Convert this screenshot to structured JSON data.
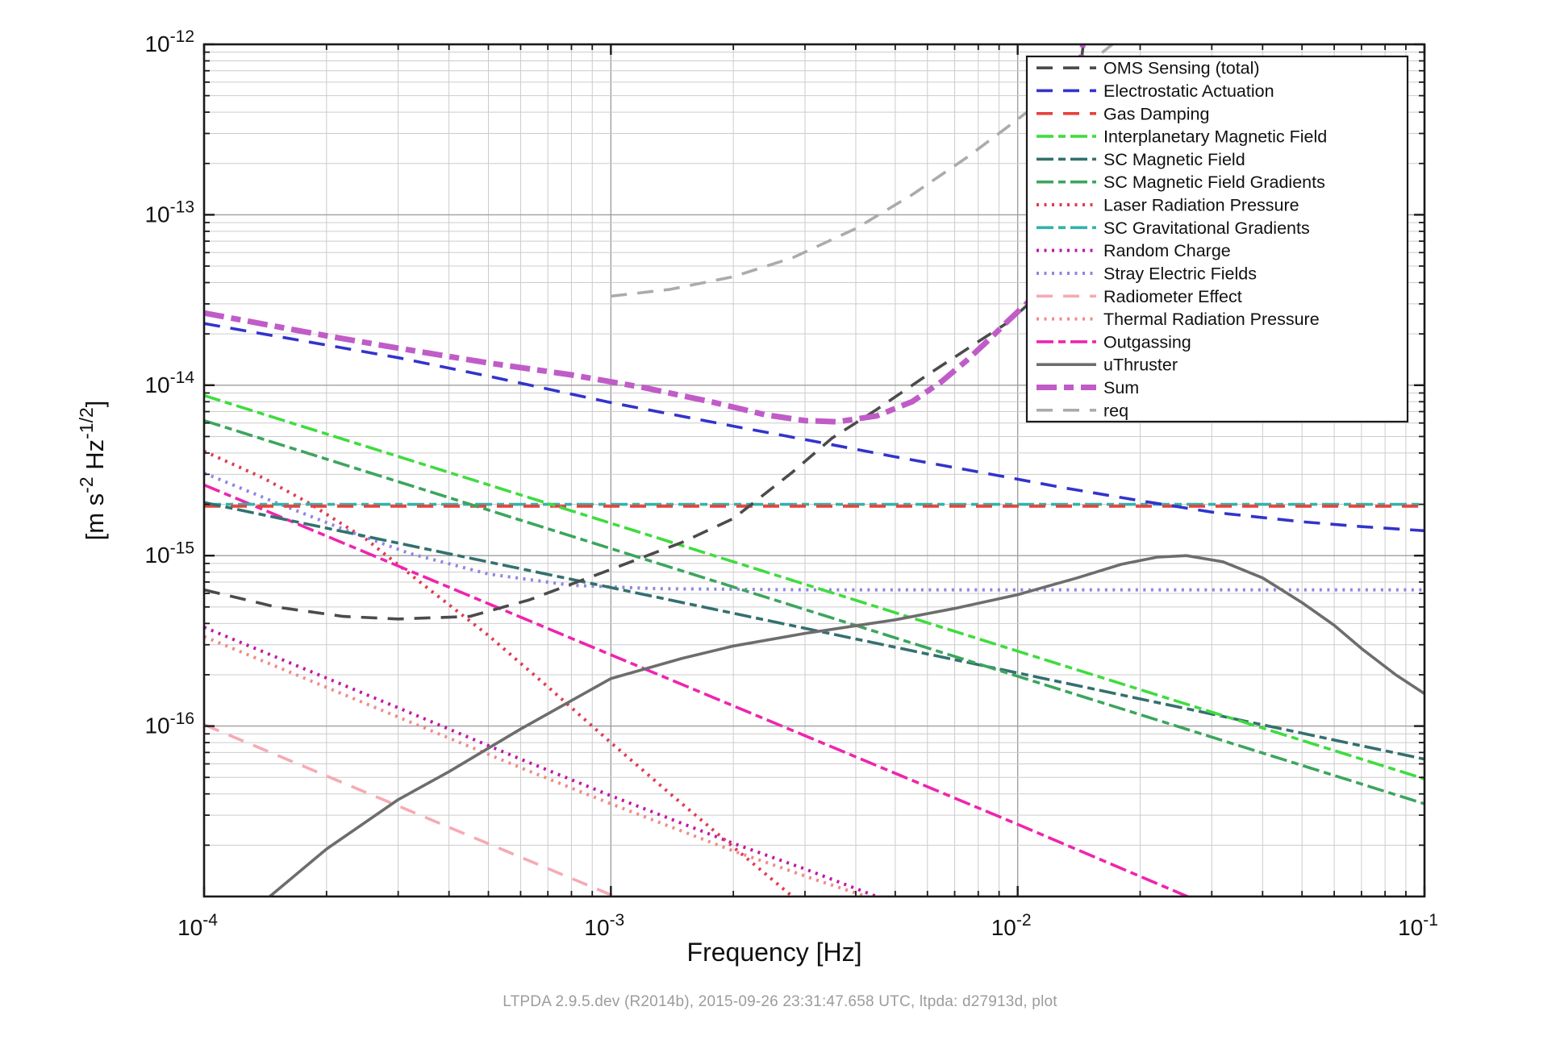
{
  "figure": {
    "footer": "LTPDA 2.9.5.dev (R2014b), 2015-09-26 23:31:47.658 UTC, ltpda: d27913d, plot",
    "background": "#ffffff",
    "frame_color": "#1a1a1a",
    "grid_major_color": "#9f9f9f",
    "grid_minor_color": "#cccccc"
  },
  "chart_data": {
    "type": "line",
    "title": "",
    "xlabel": "Frequency  [Hz]",
    "ylabel": "[m s^-2 Hz^-1/2]",
    "ylabel_parts": [
      {
        "t": "[m s",
        "sup": false
      },
      {
        "t": "-2",
        "sup": true
      },
      {
        "t": " Hz",
        "sup": false
      },
      {
        "t": "-1/2",
        "sup": true
      },
      {
        "t": "]",
        "sup": false
      }
    ],
    "x_scale": "log",
    "y_scale": "log",
    "xlim": [
      0.0001,
      0.1
    ],
    "ylim": [
      1.03e-17,
      1e-12
    ],
    "grid": true,
    "legend_position": "upper right",
    "x_ticks": [
      {
        "value": 0.0001,
        "base": "10",
        "exp": "-4"
      },
      {
        "value": 0.001,
        "base": "10",
        "exp": "-3"
      },
      {
        "value": 0.01,
        "base": "10",
        "exp": "-2"
      },
      {
        "value": 0.1,
        "base": "10",
        "exp": "-1"
      }
    ],
    "y_ticks": [
      {
        "value": 1e-12,
        "base": "10",
        "exp": "-12"
      },
      {
        "value": 1e-13,
        "base": "10",
        "exp": "-13"
      },
      {
        "value": 1e-14,
        "base": "10",
        "exp": "-14"
      },
      {
        "value": 1e-15,
        "base": "10",
        "exp": "-15"
      },
      {
        "value": 1e-16,
        "base": "10",
        "exp": "-16"
      }
    ],
    "draw_order": [
      "radiometer",
      "thermal",
      "random_charge",
      "laser",
      "stray",
      "outgassing",
      "sc_grav",
      "gas_damping",
      "sc_mag_field",
      "sc_mag_gradients",
      "interplanetary",
      "uthruster",
      "oms",
      "electrostatic",
      "sum",
      "req"
    ],
    "series": [
      {
        "id": "oms",
        "name": "OMS Sensing (total)",
        "color": "#4b4b4b",
        "style": "dash",
        "width": 3.6,
        "points": [
          [
            0.0001,
            6.3e-16
          ],
          [
            0.00015,
            5e-16
          ],
          [
            0.00022,
            4.4e-16
          ],
          [
            0.0003,
            4.25e-16
          ],
          [
            0.00045,
            4.4e-16
          ],
          [
            0.00063,
            5.5e-16
          ],
          [
            0.001,
            8.3e-16
          ],
          [
            0.0015,
            1.2e-15
          ],
          [
            0.002,
            1.65e-15
          ],
          [
            0.0028,
            3.1e-15
          ],
          [
            0.0035,
            4.9e-15
          ],
          [
            0.0045,
            7.2e-15
          ],
          [
            0.006,
            1.15e-14
          ],
          [
            0.008,
            1.8e-14
          ],
          [
            0.0095,
            2.35e-14
          ],
          [
            0.0108,
            3.1e-14
          ],
          [
            0.012,
            5.8e-14
          ],
          [
            0.013,
            1.55e-13
          ],
          [
            0.0139,
            4.3e-13
          ],
          [
            0.0145,
            1e-12
          ],
          [
            0.0147,
            1.35e-12
          ]
        ]
      },
      {
        "id": "electrostatic",
        "name": "Electrostatic Actuation",
        "color": "#3333cc",
        "style": "dash",
        "width": 3.6,
        "points": [
          [
            0.0001,
            2.3e-14
          ],
          [
            0.0002,
            1.72e-14
          ],
          [
            0.0003,
            1.45e-14
          ],
          [
            0.0005,
            1.13e-14
          ],
          [
            0.001,
            7.9e-15
          ],
          [
            0.002,
            5.75e-15
          ],
          [
            0.003,
            4.8e-15
          ],
          [
            0.005,
            3.8e-15
          ],
          [
            0.008,
            3.1e-15
          ],
          [
            0.013,
            2.5e-15
          ],
          [
            0.02,
            2.1e-15
          ],
          [
            0.03,
            1.8e-15
          ],
          [
            0.05,
            1.58e-15
          ],
          [
            0.07,
            1.48e-15
          ],
          [
            0.1,
            1.4e-15
          ]
        ]
      },
      {
        "id": "gas_damping",
        "name": "Gas Damping",
        "color": "#e8413c",
        "style": "dash",
        "width": 3.6,
        "points": [
          [
            0.0001,
            1.95e-15
          ],
          [
            0.1,
            1.95e-15
          ]
        ]
      },
      {
        "id": "interplanetary",
        "name": "Interplanetary Magnetic Field",
        "color": "#3fdc3f",
        "style": "dashdot",
        "width": 3.6,
        "points": [
          [
            0.0001,
            8.7e-15
          ],
          [
            0.001,
            1.55e-15
          ],
          [
            0.01,
            2.75e-16
          ],
          [
            0.1,
            4.9e-17
          ]
        ]
      },
      {
        "id": "sc_mag_field",
        "name": "SC Magnetic Field",
        "color": "#34706f",
        "style": "dashdot",
        "width": 3.6,
        "points": [
          [
            0.0001,
            2.05e-15
          ],
          [
            0.001,
            6.5e-16
          ],
          [
            0.01,
            2.05e-16
          ],
          [
            0.1,
            6.4e-17
          ]
        ]
      },
      {
        "id": "sc_mag_gradients",
        "name": "SC Magnetic Field Gradients",
        "color": "#3ca55e",
        "style": "dashdot",
        "width": 3.6,
        "points": [
          [
            0.0001,
            6.2e-15
          ],
          [
            0.001,
            1.1e-15
          ],
          [
            0.01,
            1.96e-16
          ],
          [
            0.1,
            3.5e-17
          ]
        ]
      },
      {
        "id": "laser",
        "name": "Laser Radiation Pressure",
        "color": "#e13b52",
        "style": "dot",
        "width": 4,
        "points": [
          [
            0.0001,
            4.1e-15
          ],
          [
            0.00014,
            2.85e-15
          ],
          [
            0.00018,
            2.05e-15
          ],
          [
            0.00025,
            1.25e-15
          ],
          [
            0.00035,
            6.6e-16
          ],
          [
            0.0005,
            3.4e-16
          ],
          [
            0.0007,
            1.7e-16
          ],
          [
            0.001,
            8e-17
          ],
          [
            0.0014,
            4e-17
          ],
          [
            0.002,
            1.95e-17
          ],
          [
            0.0029,
            9.3e-18
          ]
        ]
      },
      {
        "id": "sc_grav",
        "name": "SC Gravitational Gradients",
        "color": "#32b3aa",
        "style": "dashdot",
        "width": 3.6,
        "points": [
          [
            0.0001,
            2e-15
          ],
          [
            0.1,
            2e-15
          ]
        ]
      },
      {
        "id": "random_charge",
        "name": "Random Charge",
        "color": "#c217a7",
        "style": "dot",
        "width": 4,
        "points": [
          [
            0.0001,
            3.8e-16
          ],
          [
            0.0003,
            1.28e-16
          ],
          [
            0.0006,
            6.4e-17
          ],
          [
            0.001,
            3.9e-17
          ],
          [
            0.002,
            2.05e-17
          ],
          [
            0.003,
            1.45e-17
          ],
          [
            0.0045,
            1e-17
          ],
          [
            0.0055,
            8.6e-18
          ]
        ]
      },
      {
        "id": "stray",
        "name": "Stray Electric Fields",
        "color": "#8e86e2",
        "style": "dot",
        "width": 4,
        "points": [
          [
            0.0001,
            3.05e-15
          ],
          [
            0.00015,
            2.05e-15
          ],
          [
            0.00022,
            1.43e-15
          ],
          [
            0.00032,
            1.03e-15
          ],
          [
            0.0005,
            7.8e-16
          ],
          [
            0.0008,
            6.7e-16
          ],
          [
            0.0013,
            6.4e-16
          ],
          [
            0.003,
            6.3e-16
          ],
          [
            0.1,
            6.3e-16
          ]
        ]
      },
      {
        "id": "radiometer",
        "name": "Radiometer Effect",
        "color": "#f5abb4",
        "style": "dash",
        "width": 3.6,
        "points": [
          [
            0.0001,
            1.02e-16
          ],
          [
            0.0002,
            5.1e-17
          ],
          [
            0.0004,
            2.55e-17
          ],
          [
            0.0007,
            1.46e-17
          ],
          [
            0.00115,
            8.9e-18
          ]
        ]
      },
      {
        "id": "thermal",
        "name": "Thermal Radiation Pressure",
        "color": "#ef8b8b",
        "style": "dot",
        "width": 4,
        "points": [
          [
            0.0001,
            3.35e-16
          ],
          [
            0.0003,
            1.13e-16
          ],
          [
            0.0006,
            5.7e-17
          ],
          [
            0.001,
            3.5e-17
          ],
          [
            0.002,
            1.85e-17
          ],
          [
            0.0032,
            1.25e-17
          ],
          [
            0.005,
            8.8e-18
          ]
        ]
      },
      {
        "id": "outgassing",
        "name": "Outgassing",
        "color": "#ee25ad",
        "style": "dashdot",
        "width": 3.6,
        "points": [
          [
            0.0001,
            2.6e-15
          ],
          [
            0.001,
            2.62e-16
          ],
          [
            0.01,
            2.65e-17
          ],
          [
            0.0275,
            9.5e-18
          ]
        ]
      },
      {
        "id": "uthruster",
        "name": "uThruster",
        "color": "#6d6d6d",
        "style": "solid",
        "width": 3.6,
        "points": [
          [
            0.000145,
            1e-17
          ],
          [
            0.0002,
            1.9e-17
          ],
          [
            0.0003,
            3.7e-17
          ],
          [
            0.0004,
            5.4e-17
          ],
          [
            0.0006,
            9.6e-17
          ],
          [
            0.001,
            1.9e-16
          ],
          [
            0.0015,
            2.5e-16
          ],
          [
            0.002,
            2.95e-16
          ],
          [
            0.003,
            3.5e-16
          ],
          [
            0.005,
            4.2e-16
          ],
          [
            0.007,
            4.9e-16
          ],
          [
            0.01,
            5.9e-16
          ],
          [
            0.014,
            7.4e-16
          ],
          [
            0.018,
            8.9e-16
          ],
          [
            0.022,
            9.8e-16
          ],
          [
            0.026,
            1e-15
          ],
          [
            0.032,
            9.2e-16
          ],
          [
            0.04,
            7.4e-16
          ],
          [
            0.05,
            5.3e-16
          ],
          [
            0.06,
            3.9e-16
          ],
          [
            0.07,
            2.85e-16
          ],
          [
            0.085,
            2e-16
          ],
          [
            0.1,
            1.55e-16
          ]
        ]
      },
      {
        "id": "sum",
        "name": "Sum",
        "color": "#c05cc8",
        "style": "sumdash",
        "width": 7,
        "points": [
          [
            0.0001,
            2.65e-14
          ],
          [
            0.0002,
            1.95e-14
          ],
          [
            0.0003,
            1.65e-14
          ],
          [
            0.0005,
            1.35e-14
          ],
          [
            0.0008,
            1.15e-14
          ],
          [
            0.0012,
            9.7e-15
          ],
          [
            0.0018,
            7.9e-15
          ],
          [
            0.0024,
            6.7e-15
          ],
          [
            0.003,
            6.2e-15
          ],
          [
            0.0036,
            6.1e-15
          ],
          [
            0.0045,
            6.6e-15
          ],
          [
            0.0055,
            8e-15
          ],
          [
            0.0065,
            1.05e-14
          ],
          [
            0.0075,
            1.4e-14
          ],
          [
            0.0085,
            1.85e-14
          ],
          [
            0.0095,
            2.4e-14
          ],
          [
            0.0108,
            3.2e-14
          ],
          [
            0.012,
            6.2e-14
          ],
          [
            0.013,
            1.65e-13
          ],
          [
            0.0139,
            4.5e-13
          ],
          [
            0.0145,
            1.05e-12
          ],
          [
            0.0147,
            1.4e-12
          ]
        ]
      },
      {
        "id": "req",
        "name": "req",
        "color": "#ababab",
        "style": "dash",
        "width": 3.6,
        "points": [
          [
            0.001,
            3.33e-14
          ],
          [
            0.0014,
            3.65e-14
          ],
          [
            0.002,
            4.33e-14
          ],
          [
            0.0028,
            5.6e-14
          ],
          [
            0.004,
            8.3e-14
          ],
          [
            0.0055,
            1.31e-13
          ],
          [
            0.0075,
            2.17e-13
          ],
          [
            0.01,
            3.63e-13
          ],
          [
            0.013,
            5.93e-13
          ],
          [
            0.0155,
            8.3e-13
          ],
          [
            0.0178,
            1.08e-12
          ]
        ]
      }
    ]
  }
}
